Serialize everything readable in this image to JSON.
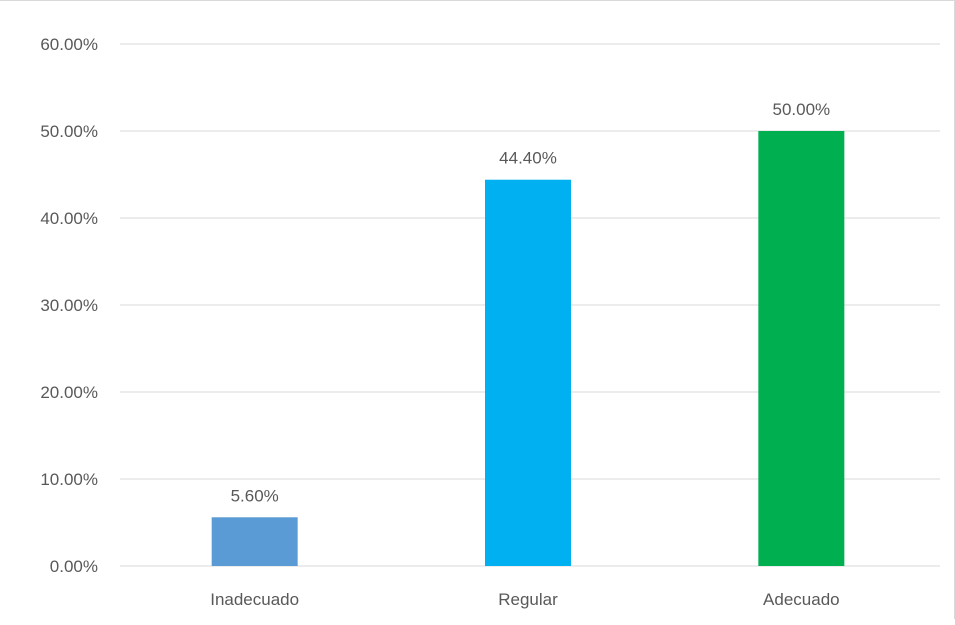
{
  "chart_data": {
    "type": "bar",
    "title": "",
    "xlabel": "",
    "ylabel": "",
    "categories": [
      "Inadecuado",
      "Regular",
      "Adecuado"
    ],
    "values": [
      5.6,
      44.4,
      50.0
    ],
    "value_labels": [
      "5.60%",
      "44.40%",
      "50.00%"
    ],
    "colors": [
      "#5b9bd5",
      "#00b0f0",
      "#00b050"
    ],
    "ylim": [
      0,
      60
    ],
    "yticks": [
      0,
      10,
      20,
      30,
      40,
      50,
      60
    ],
    "ytick_labels": [
      "0.00%",
      "10.00%",
      "20.00%",
      "30.00%",
      "40.00%",
      "50.00%",
      "60.00%"
    ],
    "grid": true,
    "gridline_color": "#d9d9d9",
    "legend": "none"
  }
}
